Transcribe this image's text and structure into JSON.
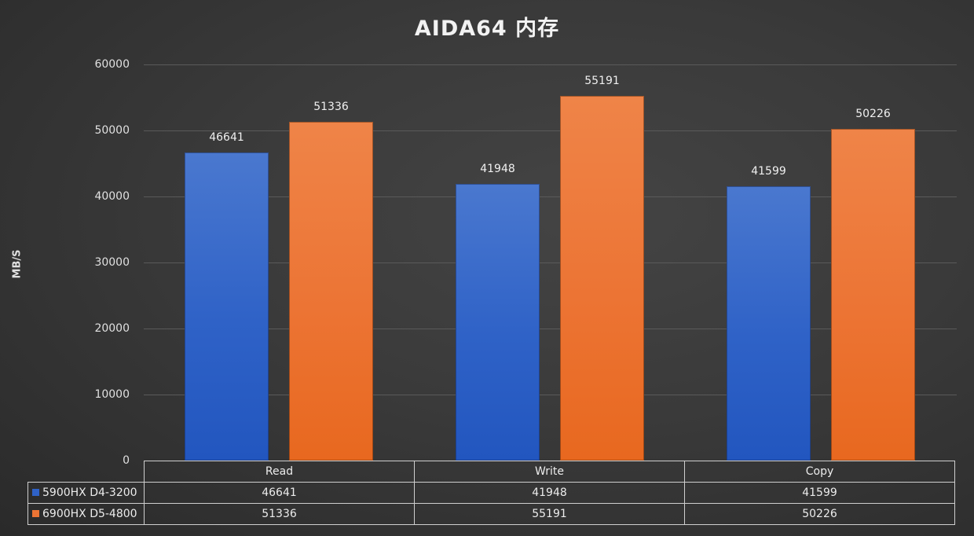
{
  "chart_data": {
    "type": "bar",
    "title": "AIDA64 内存",
    "xlabel": "",
    "ylabel": "MB/S",
    "ylim": [
      0,
      60000
    ],
    "yticks": [
      0,
      10000,
      20000,
      30000,
      40000,
      50000,
      60000
    ],
    "grid": true,
    "legend_position": "bottom-data-table",
    "categories": [
      "Read",
      "Write",
      "Copy"
    ],
    "series": [
      {
        "name": "5900HX D4-3200",
        "color": "#2f62c7",
        "values": [
          46641,
          41948,
          41599
        ]
      },
      {
        "name": "6900HX D5-4800",
        "color": "#ec7434",
        "values": [
          51336,
          55191,
          50226
        ]
      }
    ]
  },
  "labels": {
    "title": "AIDA64 内存",
    "ylabel": "MB/S",
    "yticks": [
      "0",
      "10000",
      "20000",
      "30000",
      "40000",
      "50000",
      "60000"
    ],
    "categories": [
      "Read",
      "Write",
      "Copy"
    ],
    "series0": {
      "name": "5900HX D4-3200",
      "values": [
        "46641",
        "41948",
        "41599"
      ]
    },
    "series1": {
      "name": "6900HX D5-4800",
      "values": [
        "51336",
        "55191",
        "50226"
      ]
    }
  }
}
